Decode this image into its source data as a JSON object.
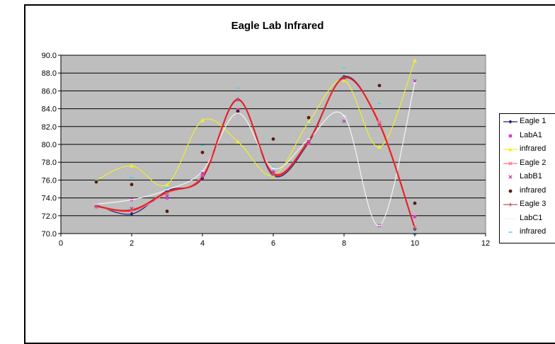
{
  "chart_data": {
    "type": "scatter",
    "title": "Eagle Lab Infrared",
    "xlim": [
      0,
      12
    ],
    "ylim": [
      70.0,
      90.0
    ],
    "x_ticks": [
      "0",
      "2",
      "4",
      "6",
      "8",
      "10",
      "12"
    ],
    "y_ticks": [
      "70.0",
      "72.0",
      "74.0",
      "76.0",
      "78.0",
      "80.0",
      "82.0",
      "84.0",
      "86.0",
      "88.0",
      "90.0"
    ],
    "grid": true,
    "legend_position": "right",
    "plot_background": "#bebebe",
    "x": [
      1,
      2,
      3,
      4,
      5,
      6,
      7,
      8,
      9,
      10
    ],
    "series": [
      {
        "name": "Eagle 1",
        "values": [
          73.2,
          72.2,
          74.8,
          76.2,
          85.0,
          76.5,
          80.2,
          87.6,
          82.3,
          70.5
        ],
        "color": "#1a1a80",
        "line": true,
        "marker": "diamond"
      },
      {
        "name": "LabA1",
        "values": [
          73.1,
          73.8,
          74.0,
          76.6,
          83.9,
          76.9,
          80.1,
          87.3,
          82.4,
          71.9
        ],
        "color": "#d63ad6",
        "line": false,
        "marker": "square"
      },
      {
        "name": "infrared",
        "values": [
          76.0,
          77.6,
          75.5,
          82.7,
          80.3,
          76.5,
          82.5,
          87.2,
          79.7,
          89.4
        ],
        "color": "#f2ee2c",
        "line": true,
        "marker": "triangle"
      },
      {
        "name": "Eagle 2",
        "values": [
          73.0,
          72.5,
          74.5,
          76.5,
          85.0,
          76.8,
          80.5,
          87.4,
          82.5,
          70.7
        ],
        "color": "#ff7a8a",
        "line": true,
        "marker": "x"
      },
      {
        "name": "LabB1",
        "values": [
          73.2,
          72.8,
          74.2,
          76.8,
          83.6,
          76.8,
          80.3,
          82.6,
          70.9,
          87.1
        ],
        "color": "#b43cb4",
        "line": false,
        "marker": "x"
      },
      {
        "name": "infrared",
        "values": [
          75.8,
          75.5,
          72.5,
          79.1,
          83.7,
          80.6,
          83.0,
          87.5,
          86.6,
          73.4
        ],
        "color": "#5a1a10",
        "line": false,
        "marker": "circle"
      },
      {
        "name": "Eagle 3",
        "values": [
          73.0,
          72.7,
          74.6,
          76.4,
          85.1,
          76.6,
          80.3,
          87.5,
          82.2,
          70.6
        ],
        "color": "#c05060",
        "line": true,
        "marker": "plus"
      },
      {
        "name": "LabC1",
        "values": [
          73.3,
          73.8,
          74.9,
          77.0,
          83.5,
          77.3,
          80.6,
          83.2,
          70.9,
          86.9
        ],
        "color": "#f4f4f4",
        "line": true,
        "marker": "dash"
      },
      {
        "name": "infrared",
        "values": [
          76.1,
          76.3,
          75.1,
          79.9,
          86.3,
          77.5,
          82.3,
          88.6,
          84.6,
          69.9
        ],
        "color": "#3fd6e6",
        "line": false,
        "marker": "dash"
      },
      {
        "name": "",
        "values": [
          73.1,
          72.6,
          74.7,
          76.3,
          85.0,
          76.7,
          80.4,
          87.5,
          82.3,
          70.6
        ],
        "color": "#e82020",
        "line": true,
        "marker": "none"
      }
    ]
  }
}
